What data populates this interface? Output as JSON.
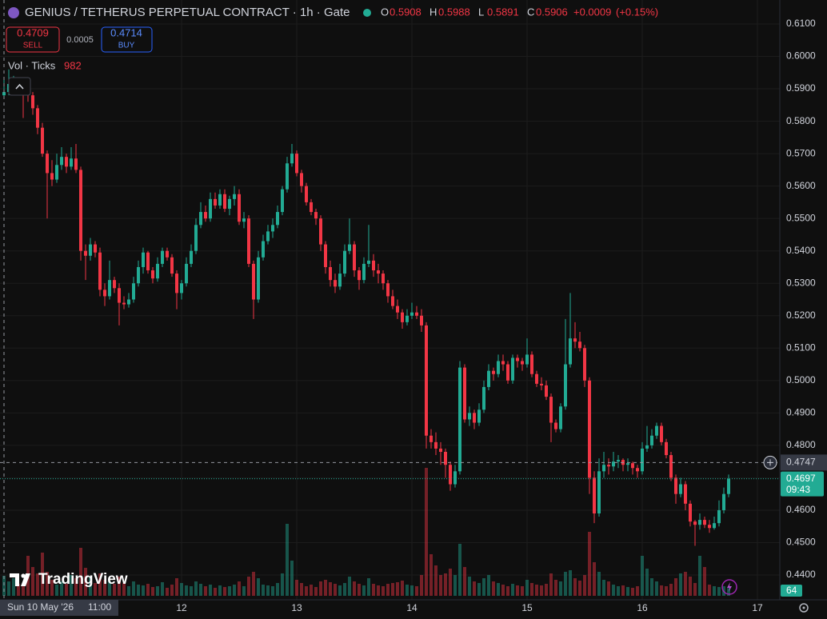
{
  "chart_data": {
    "type": "candlestick",
    "title": "GENIUS / TETHERUS PERPETUAL CONTRACT · 1h · Gate",
    "legend": {
      "labels": [
        "O",
        "H",
        "L",
        "C"
      ],
      "values": [
        0.5908,
        0.5988,
        0.5891,
        0.5906
      ],
      "change": "+0.0009",
      "change_pct": "(+0.15%)"
    },
    "sell": {
      "value": 0.4709,
      "label": "SELL"
    },
    "spread": 0.0005,
    "buy": {
      "value": 0.4714,
      "label": "BUY"
    },
    "volume_label": "Vol · Ticks",
    "colors": {
      "up": "#22ab94",
      "down": "#f23645"
    },
    "ylim": [
      0.44,
      0.61
    ],
    "yticks": [
      {
        "value": 0.44,
        "label": "0.4400"
      },
      {
        "value": 0.45,
        "label": "0.4500"
      },
      {
        "value": 0.46,
        "label": "0.4600"
      },
      {
        "value": 0.47,
        "label": "0.4700"
      },
      {
        "value": 0.48,
        "label": "0.4800"
      },
      {
        "value": 0.49,
        "label": "0.4900"
      },
      {
        "value": 0.5,
        "label": "0.5000"
      },
      {
        "value": 0.51,
        "label": "0.5100"
      },
      {
        "value": 0.52,
        "label": "0.5200"
      },
      {
        "value": 0.53,
        "label": "0.5300"
      },
      {
        "value": 0.54,
        "label": "0.5400"
      },
      {
        "value": 0.55,
        "label": "0.5500"
      },
      {
        "value": 0.56,
        "label": "0.5600"
      },
      {
        "value": 0.57,
        "label": "0.5700"
      },
      {
        "value": 0.58,
        "label": "0.5800"
      },
      {
        "value": 0.59,
        "label": "0.5900"
      },
      {
        "value": 0.6,
        "label": "0.6000"
      },
      {
        "value": 0.61,
        "label": "0.6100"
      }
    ],
    "xticks": [
      {
        "value": 37,
        "label": "12"
      },
      {
        "value": 61,
        "label": "13"
      },
      {
        "value": 85,
        "label": "14"
      },
      {
        "value": 109,
        "label": "15"
      },
      {
        "value": 133,
        "label": "16"
      },
      {
        "value": 157,
        "label": "17"
      }
    ],
    "grid": true,
    "crosshair": {
      "price": 0.4747,
      "date": "Sun 10 May '26",
      "time": "11:00"
    },
    "last_price": 0.4697,
    "countdown": "09:43",
    "volume_tag": 64,
    "brand": "TradingView",
    "ohlc": [
      [
        0.588,
        0.5935,
        0.587,
        0.589
      ],
      [
        0.589,
        0.596,
        0.588,
        0.5915
      ],
      [
        0.5915,
        0.594,
        0.5895,
        0.5925
      ],
      [
        0.5925,
        0.5935,
        0.588,
        0.5905
      ],
      [
        0.5905,
        0.5915,
        0.581,
        0.5895
      ],
      [
        0.5895,
        0.5905,
        0.586,
        0.588
      ],
      [
        0.588,
        0.589,
        0.582,
        0.584
      ],
      [
        0.584,
        0.585,
        0.576,
        0.578
      ],
      [
        0.578,
        0.5795,
        0.569,
        0.57
      ],
      [
        0.57,
        0.571,
        0.55,
        0.564
      ],
      [
        0.564,
        0.568,
        0.56,
        0.562
      ],
      [
        0.562,
        0.57,
        0.561,
        0.5665
      ],
      [
        0.5665,
        0.572,
        0.565,
        0.569
      ],
      [
        0.569,
        0.57,
        0.564,
        0.566
      ],
      [
        0.566,
        0.572,
        0.565,
        0.5685
      ],
      [
        0.5685,
        0.573,
        0.564,
        0.565
      ],
      [
        0.565,
        0.566,
        0.537,
        0.54
      ],
      [
        0.54,
        0.542,
        0.531,
        0.5385
      ],
      [
        0.5385,
        0.544,
        0.537,
        0.542
      ],
      [
        0.542,
        0.543,
        0.538,
        0.5395
      ],
      [
        0.5395,
        0.541,
        0.526,
        0.528
      ],
      [
        0.528,
        0.53,
        0.523,
        0.526
      ],
      [
        0.526,
        0.537,
        0.525,
        0.531
      ],
      [
        0.531,
        0.532,
        0.527,
        0.5285
      ],
      [
        0.5285,
        0.53,
        0.517,
        0.524
      ],
      [
        0.524,
        0.526,
        0.522,
        0.5235
      ],
      [
        0.5235,
        0.527,
        0.5225,
        0.525
      ],
      [
        0.525,
        0.532,
        0.524,
        0.53
      ],
      [
        0.53,
        0.537,
        0.529,
        0.535
      ],
      [
        0.535,
        0.541,
        0.533,
        0.5395
      ],
      [
        0.5395,
        0.54,
        0.533,
        0.534
      ],
      [
        0.534,
        0.535,
        0.53,
        0.5315
      ],
      [
        0.5315,
        0.538,
        0.5305,
        0.536
      ],
      [
        0.536,
        0.541,
        0.535,
        0.54
      ],
      [
        0.54,
        0.541,
        0.537,
        0.538
      ],
      [
        0.538,
        0.539,
        0.532,
        0.533
      ],
      [
        0.533,
        0.534,
        0.522,
        0.527
      ],
      [
        0.527,
        0.531,
        0.525,
        0.53
      ],
      [
        0.53,
        0.538,
        0.529,
        0.536
      ],
      [
        0.536,
        0.542,
        0.535,
        0.54
      ],
      [
        0.54,
        0.55,
        0.539,
        0.548
      ],
      [
        0.548,
        0.555,
        0.547,
        0.552
      ],
      [
        0.552,
        0.554,
        0.549,
        0.55
      ],
      [
        0.55,
        0.558,
        0.549,
        0.556
      ],
      [
        0.556,
        0.558,
        0.553,
        0.554
      ],
      [
        0.554,
        0.559,
        0.553,
        0.5575
      ],
      [
        0.5575,
        0.559,
        0.552,
        0.553
      ],
      [
        0.553,
        0.557,
        0.551,
        0.556
      ],
      [
        0.556,
        0.56,
        0.554,
        0.5575
      ],
      [
        0.5575,
        0.559,
        0.548,
        0.549
      ],
      [
        0.549,
        0.552,
        0.547,
        0.55
      ],
      [
        0.55,
        0.551,
        0.535,
        0.536
      ],
      [
        0.536,
        0.537,
        0.519,
        0.525
      ],
      [
        0.525,
        0.54,
        0.524,
        0.538
      ],
      [
        0.538,
        0.545,
        0.537,
        0.543
      ],
      [
        0.543,
        0.548,
        0.542,
        0.546
      ],
      [
        0.546,
        0.55,
        0.544,
        0.548
      ],
      [
        0.548,
        0.554,
        0.547,
        0.552
      ],
      [
        0.552,
        0.56,
        0.551,
        0.559
      ],
      [
        0.559,
        0.569,
        0.558,
        0.567
      ],
      [
        0.567,
        0.573,
        0.566,
        0.57
      ],
      [
        0.57,
        0.571,
        0.563,
        0.564
      ],
      [
        0.564,
        0.565,
        0.558,
        0.56
      ],
      [
        0.56,
        0.561,
        0.554,
        0.555
      ],
      [
        0.555,
        0.556,
        0.551,
        0.552
      ],
      [
        0.552,
        0.553,
        0.548,
        0.55
      ],
      [
        0.55,
        0.551,
        0.54,
        0.542
      ],
      [
        0.542,
        0.543,
        0.533,
        0.535
      ],
      [
        0.535,
        0.537,
        0.529,
        0.531
      ],
      [
        0.531,
        0.533,
        0.527,
        0.529
      ],
      [
        0.529,
        0.536,
        0.528,
        0.533
      ],
      [
        0.533,
        0.542,
        0.532,
        0.54
      ],
      [
        0.54,
        0.55,
        0.539,
        0.542
      ],
      [
        0.542,
        0.543,
        0.532,
        0.534
      ],
      [
        0.534,
        0.535,
        0.528,
        0.531
      ],
      [
        0.531,
        0.538,
        0.53,
        0.536
      ],
      [
        0.536,
        0.548,
        0.535,
        0.537
      ],
      [
        0.537,
        0.539,
        0.532,
        0.534
      ],
      [
        0.534,
        0.536,
        0.53,
        0.533
      ],
      [
        0.533,
        0.534,
        0.528,
        0.53
      ],
      [
        0.53,
        0.531,
        0.524,
        0.526
      ],
      [
        0.526,
        0.528,
        0.522,
        0.523
      ],
      [
        0.523,
        0.525,
        0.519,
        0.521
      ],
      [
        0.521,
        0.522,
        0.516,
        0.518
      ],
      [
        0.518,
        0.522,
        0.517,
        0.52
      ],
      [
        0.52,
        0.524,
        0.519,
        0.521
      ],
      [
        0.521,
        0.523,
        0.519,
        0.52
      ],
      [
        0.52,
        0.522,
        0.515,
        0.517
      ],
      [
        0.517,
        0.518,
        0.479,
        0.483
      ],
      [
        0.483,
        0.485,
        0.479,
        0.481
      ],
      [
        0.481,
        0.484,
        0.477,
        0.479
      ],
      [
        0.479,
        0.481,
        0.474,
        0.478
      ],
      [
        0.478,
        0.479,
        0.47,
        0.474
      ],
      [
        0.474,
        0.475,
        0.466,
        0.468
      ],
      [
        0.468,
        0.474,
        0.467,
        0.472
      ],
      [
        0.472,
        0.506,
        0.471,
        0.504
      ],
      [
        0.504,
        0.505,
        0.487,
        0.488
      ],
      [
        0.488,
        0.492,
        0.486,
        0.49
      ],
      [
        0.49,
        0.491,
        0.485,
        0.487
      ],
      [
        0.487,
        0.493,
        0.486,
        0.491
      ],
      [
        0.491,
        0.5,
        0.49,
        0.498
      ],
      [
        0.498,
        0.505,
        0.497,
        0.503
      ],
      [
        0.503,
        0.504,
        0.5,
        0.502
      ],
      [
        0.502,
        0.508,
        0.501,
        0.506
      ],
      [
        0.506,
        0.508,
        0.503,
        0.505
      ],
      [
        0.505,
        0.506,
        0.499,
        0.5
      ],
      [
        0.5,
        0.508,
        0.499,
        0.507
      ],
      [
        0.507,
        0.508,
        0.504,
        0.506
      ],
      [
        0.506,
        0.507,
        0.503,
        0.505
      ],
      [
        0.505,
        0.513,
        0.504,
        0.508
      ],
      [
        0.508,
        0.509,
        0.501,
        0.502
      ],
      [
        0.502,
        0.503,
        0.498,
        0.499
      ],
      [
        0.499,
        0.501,
        0.497,
        0.4985
      ],
      [
        0.4985,
        0.5,
        0.494,
        0.495
      ],
      [
        0.495,
        0.496,
        0.481,
        0.487
      ],
      [
        0.487,
        0.488,
        0.484,
        0.485
      ],
      [
        0.485,
        0.493,
        0.484,
        0.492
      ],
      [
        0.492,
        0.519,
        0.491,
        0.505
      ],
      [
        0.505,
        0.527,
        0.504,
        0.513
      ],
      [
        0.513,
        0.518,
        0.51,
        0.512
      ],
      [
        0.512,
        0.515,
        0.509,
        0.51
      ],
      [
        0.51,
        0.511,
        0.498,
        0.5
      ],
      [
        0.5,
        0.501,
        0.465,
        0.47
      ],
      [
        0.47,
        0.472,
        0.456,
        0.459
      ],
      [
        0.459,
        0.476,
        0.458,
        0.472
      ],
      [
        0.472,
        0.478,
        0.47,
        0.474
      ],
      [
        0.474,
        0.476,
        0.471,
        0.4735
      ],
      [
        0.4735,
        0.478,
        0.472,
        0.475
      ],
      [
        0.475,
        0.477,
        0.473,
        0.4755
      ],
      [
        0.4755,
        0.476,
        0.472,
        0.474
      ],
      [
        0.474,
        0.476,
        0.472,
        0.4745
      ],
      [
        0.4745,
        0.475,
        0.471,
        0.473
      ],
      [
        0.473,
        0.474,
        0.47,
        0.472
      ],
      [
        0.472,
        0.481,
        0.471,
        0.479
      ],
      [
        0.479,
        0.486,
        0.478,
        0.48
      ],
      [
        0.48,
        0.485,
        0.479,
        0.483
      ],
      [
        0.483,
        0.487,
        0.482,
        0.486
      ],
      [
        0.486,
        0.487,
        0.48,
        0.481
      ],
      [
        0.481,
        0.482,
        0.476,
        0.477
      ],
      [
        0.477,
        0.478,
        0.469,
        0.47
      ],
      [
        0.47,
        0.471,
        0.462,
        0.465
      ],
      [
        0.465,
        0.47,
        0.464,
        0.468
      ],
      [
        0.468,
        0.469,
        0.46,
        0.462
      ],
      [
        0.462,
        0.463,
        0.455,
        0.4565
      ],
      [
        0.4565,
        0.457,
        0.449,
        0.4555
      ],
      [
        0.4555,
        0.459,
        0.454,
        0.457
      ],
      [
        0.457,
        0.458,
        0.4545,
        0.4555
      ],
      [
        0.4555,
        0.457,
        0.453,
        0.4545
      ],
      [
        0.4545,
        0.458,
        0.454,
        0.456
      ],
      [
        0.456,
        0.463,
        0.455,
        0.46
      ],
      [
        0.46,
        0.467,
        0.459,
        0.465
      ],
      [
        0.465,
        0.471,
        0.464,
        0.4697
      ]
    ],
    "volume": [
      2500,
      1800,
      2200,
      1500,
      1200,
      5000,
      3600,
      2800,
      5400,
      3000,
      2000,
      1400,
      1800,
      1500,
      2600,
      2200,
      6000,
      3500,
      2400,
      1600,
      2800,
      2000,
      1800,
      1500,
      2400,
      1600,
      1200,
      1800,
      1400,
      1300,
      1500,
      1100,
      1200,
      1700,
      1000,
      1400,
      2200,
      1600,
      1300,
      1200,
      1800,
      1500,
      1200,
      1400,
      1000,
      1300,
      1100,
      1200,
      1400,
      1800,
      1200,
      2400,
      3000,
      2200,
      1400,
      1300,
      1200,
      1600,
      2800,
      9000,
      4400,
      2000,
      1600,
      1200,
      1400,
      1100,
      1800,
      2000,
      1700,
      1500,
      1300,
      1600,
      2400,
      1800,
      1500,
      1300,
      2200,
      1500,
      1300,
      1200,
      1500,
      1600,
      1700,
      1900,
      1400,
      1300,
      1200,
      2600,
      16000,
      5200,
      3800,
      2600,
      2800,
      3400,
      2600,
      6500,
      3600,
      2400,
      1800,
      1600,
      2200,
      2600,
      1800,
      1600,
      1400,
      1200,
      1500,
      1300,
      1200,
      2000,
      1600,
      1400,
      1300,
      1500,
      2800,
      2000,
      1800,
      3000,
      3200,
      2200,
      1900,
      2600,
      8000,
      4200,
      3000,
      2000,
      1800,
      1400,
      1200,
      1300,
      1100,
      1000,
      1200,
      5000,
      3400,
      2200,
      1800,
      1300,
      1200,
      1500,
      2200,
      2800,
      3000,
      2400,
      1600,
      5000,
      3600,
      1400,
      1200,
      1100,
      1200,
      982
    ]
  }
}
